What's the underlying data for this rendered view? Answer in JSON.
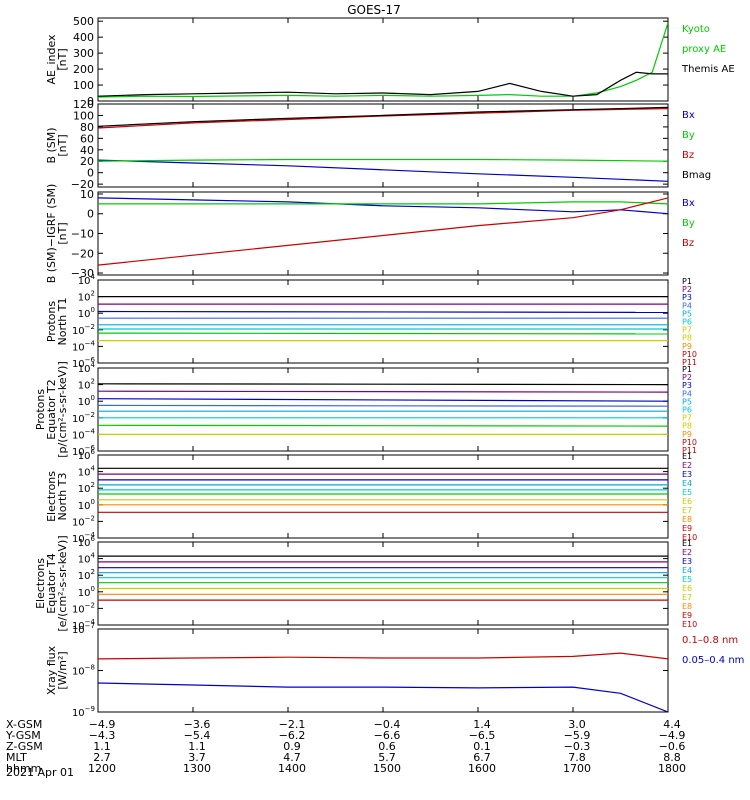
{
  "title": "GOES-17",
  "time_axis": {
    "date": "2021 Apr 01",
    "row_labels": [
      "X-GSM",
      "Y-GSM",
      "Z-GSM",
      "MLT",
      "hhmm"
    ],
    "ticks": [
      {
        "hhmm": "1200",
        "xgsm": "-4.9",
        "ygsm": "-4.3",
        "zgsm": "1.1",
        "mlt": "2.7"
      },
      {
        "hhmm": "1300",
        "xgsm": "-3.6",
        "ygsm": "-5.4",
        "zgsm": "1.1",
        "mlt": "3.7"
      },
      {
        "hhmm": "1400",
        "xgsm": "-2.1",
        "ygsm": "-6.2",
        "zgsm": "0.9",
        "mlt": "4.7"
      },
      {
        "hhmm": "1500",
        "xgsm": "-0.4",
        "ygsm": "-6.6",
        "zgsm": "0.6",
        "mlt": "5.7"
      },
      {
        "hhmm": "1600",
        "xgsm": "1.4",
        "ygsm": "-6.5",
        "zgsm": "0.1",
        "mlt": "6.7"
      },
      {
        "hhmm": "1700",
        "xgsm": "3.0",
        "ygsm": "-5.9",
        "zgsm": "-0.3",
        "mlt": "7.8"
      },
      {
        "hhmm": "1800",
        "xgsm": "4.4",
        "ygsm": "-4.9",
        "zgsm": "-0.6",
        "mlt": "8.8"
      }
    ]
  },
  "chart_data": [
    {
      "id": "ae",
      "type": "line",
      "ylabel": [
        "AE_index",
        "[nT]"
      ],
      "yscale": "linear",
      "ylim": [
        0,
        520
      ],
      "yticks": [
        0,
        100,
        200,
        300,
        400,
        500
      ],
      "yticklabels": [
        "0",
        "100",
        "200",
        "300",
        "400",
        "500"
      ],
      "x": [
        "12:00",
        "12:30",
        "13:00",
        "13:30",
        "14:00",
        "14:30",
        "15:00",
        "15:30",
        "16:00",
        "16:20",
        "16:40",
        "17:00",
        "17:15",
        "17:30",
        "17:40",
        "17:50",
        "18:00"
      ],
      "series": [
        {
          "name": "Kyoto proxy AE",
          "color": "#00cc00",
          "values": [
            25,
            30,
            28,
            32,
            35,
            30,
            35,
            30,
            35,
            40,
            30,
            30,
            50,
            90,
            130,
            180,
            490
          ]
        },
        {
          "name": "Themis AE",
          "color": "#000000",
          "values": [
            30,
            40,
            45,
            50,
            55,
            45,
            50,
            40,
            60,
            110,
            60,
            30,
            40,
            130,
            180,
            170,
            170
          ]
        }
      ],
      "legend_lines": [
        {
          "text": "Kyoto",
          "color": "#00cc00"
        },
        {
          "text": "proxy AE",
          "color": "#00cc00"
        },
        {
          "text": "Themis AE",
          "color": "#000000"
        }
      ]
    },
    {
      "id": "bsm",
      "type": "line",
      "ylabel": [
        "B (SM)",
        "[nT]"
      ],
      "yscale": "linear",
      "ylim": [
        -25,
        120
      ],
      "yticks": [
        -20,
        0,
        20,
        40,
        60,
        80,
        100,
        120
      ],
      "yticklabels": [
        "−20",
        "0",
        "20",
        "40",
        "60",
        "80",
        "100",
        "120"
      ],
      "x": [
        "12:00",
        "13:00",
        "14:00",
        "15:00",
        "16:00",
        "17:00",
        "18:00"
      ],
      "series": [
        {
          "name": "Bx",
          "color": "#0000cc",
          "values": [
            22,
            17,
            12,
            5,
            -2,
            -8,
            -15
          ]
        },
        {
          "name": "By",
          "color": "#00cc00",
          "values": [
            20,
            22,
            23,
            23,
            23,
            22,
            20
          ]
        },
        {
          "name": "Bz",
          "color": "#cc0000",
          "values": [
            78,
            87,
            93,
            99,
            104,
            109,
            112
          ]
        },
        {
          "name": "Bmag",
          "color": "#000000",
          "values": [
            81,
            89,
            95,
            100,
            106,
            110,
            114
          ]
        }
      ],
      "legend_lines": [
        {
          "text": "Bx",
          "color": "#0000cc"
        },
        {
          "text": "By",
          "color": "#00cc00"
        },
        {
          "text": "Bz",
          "color": "#cc0000"
        },
        {
          "text": "Bmag",
          "color": "#000000"
        }
      ]
    },
    {
      "id": "bdiff",
      "type": "line",
      "ylabel": [
        "B (SM)−IGRF (SM)",
        "[nT]"
      ],
      "yscale": "linear",
      "ylim": [
        -31,
        11
      ],
      "yticks": [
        -30,
        -20,
        -10,
        0,
        10
      ],
      "yticklabels": [
        "−30",
        "−20",
        "−10",
        "0",
        "10"
      ],
      "x": [
        "12:00",
        "13:00",
        "14:00",
        "15:00",
        "16:00",
        "17:00",
        "17:30",
        "18:00"
      ],
      "series": [
        {
          "name": "Bx",
          "color": "#0000cc",
          "values": [
            8,
            7,
            6,
            4,
            3,
            1,
            2,
            0
          ]
        },
        {
          "name": "By",
          "color": "#00cc00",
          "values": [
            5,
            5,
            5,
            5,
            5,
            6,
            6,
            5
          ]
        },
        {
          "name": "Bz",
          "color": "#cc0000",
          "values": [
            -26,
            -21,
            -16,
            -11,
            -6,
            -2,
            2,
            8
          ]
        }
      ],
      "legend_lines": [
        {
          "text": "Bx",
          "color": "#0000cc"
        },
        {
          "text": "By",
          "color": "#00cc00"
        },
        {
          "text": "Bz",
          "color": "#cc0000"
        }
      ]
    },
    {
      "id": "pn",
      "type": "line",
      "ylabel": [
        "Protons",
        "North T1"
      ],
      "yscale": "log",
      "ylim_exp": [
        -6,
        4
      ],
      "ytick_exps": [
        -6,
        -4,
        -2,
        0,
        2,
        4
      ],
      "x": [
        "12:00",
        "18:00"
      ],
      "series": [
        {
          "name": "P1",
          "color": "#000000",
          "log_values": [
            2.0,
            2.0
          ]
        },
        {
          "name": "P2",
          "color": "#800080",
          "log_values": [
            1.1,
            1.1
          ]
        },
        {
          "name": "P3",
          "color": "#0000cc",
          "log_values": [
            0.2,
            0.1
          ]
        },
        {
          "name": "P4",
          "color": "#3366ff",
          "log_values": [
            -0.6,
            -0.6
          ]
        },
        {
          "name": "P5",
          "color": "#00aadd",
          "log_values": [
            -1.4,
            -1.4
          ]
        },
        {
          "name": "P6",
          "color": "#00cccc",
          "log_values": [
            -1.9,
            -1.9
          ]
        },
        {
          "name": "P7",
          "color": "#00cc00",
          "log_values": [
            -2.4,
            -2.5
          ]
        },
        {
          "name": "P8",
          "color": "#cccc00",
          "log_values": [
            -3.3,
            -3.3
          ]
        }
      ],
      "legend_lines": [
        {
          "text": "P1",
          "color": "#000000"
        },
        {
          "text": "P2",
          "color": "#800080"
        },
        {
          "text": "P3",
          "color": "#0000cc"
        },
        {
          "text": "P4",
          "color": "#3366ff"
        },
        {
          "text": "P5",
          "color": "#00aadd"
        },
        {
          "text": "P6",
          "color": "#00cccc"
        },
        {
          "text": "P7",
          "color": "#cccc00"
        },
        {
          "text": "P8",
          "color": "#cccc00"
        },
        {
          "text": "P9",
          "color": "#ff8800"
        },
        {
          "text": "P10",
          "color": "#cc0000"
        },
        {
          "text": "P11",
          "color": "#cc0000"
        }
      ]
    },
    {
      "id": "pe",
      "type": "line",
      "ylabel": [
        "Protons",
        "Equator T2",
        "[p/(cm²-s-sr-keV)]"
      ],
      "yscale": "log",
      "ylim_exp": [
        -6,
        4
      ],
      "ytick_exps": [
        -6,
        -4,
        -2,
        0,
        2,
        4
      ],
      "x": [
        "12:00",
        "18:00"
      ],
      "series": [
        {
          "name": "P1",
          "color": "#000000",
          "log_values": [
            2.1,
            2.0
          ]
        },
        {
          "name": "P2",
          "color": "#800080",
          "log_values": [
            1.2,
            1.1
          ]
        },
        {
          "name": "P3",
          "color": "#0000cc",
          "log_values": [
            0.3,
            0.0
          ]
        },
        {
          "name": "P4",
          "color": "#3366ff",
          "log_values": [
            -0.5,
            -0.6
          ]
        },
        {
          "name": "P5",
          "color": "#00aadd",
          "log_values": [
            -1.2,
            -1.2
          ]
        },
        {
          "name": "P6",
          "color": "#00cccc",
          "log_values": [
            -2.0,
            -2.0
          ]
        },
        {
          "name": "P7",
          "color": "#00cc00",
          "log_values": [
            -2.9,
            -3.0
          ]
        },
        {
          "name": "P8",
          "color": "#cccc00",
          "log_values": [
            -4.0,
            -4.0
          ]
        }
      ],
      "legend_lines": [
        {
          "text": "P1",
          "color": "#000000"
        },
        {
          "text": "P2",
          "color": "#800080"
        },
        {
          "text": "P3",
          "color": "#0000cc"
        },
        {
          "text": "P4",
          "color": "#3366ff"
        },
        {
          "text": "P5",
          "color": "#00aadd"
        },
        {
          "text": "P6",
          "color": "#00cccc"
        },
        {
          "text": "P7",
          "color": "#cccc00"
        },
        {
          "text": "P8",
          "color": "#cccc00"
        },
        {
          "text": "P9",
          "color": "#ff8800"
        },
        {
          "text": "P10",
          "color": "#cc0000"
        },
        {
          "text": "P11",
          "color": "#cc0000"
        }
      ]
    },
    {
      "id": "en",
      "type": "line",
      "ylabel": [
        "Electrons",
        "North T3"
      ],
      "yscale": "log",
      "ylim_exp": [
        -4,
        6
      ],
      "ytick_exps": [
        -4,
        -2,
        0,
        2,
        4,
        6
      ],
      "x": [
        "12:00",
        "18:00"
      ],
      "series": [
        {
          "name": "E1",
          "color": "#000000",
          "log_values": [
            4.4,
            4.4
          ]
        },
        {
          "name": "E2",
          "color": "#800080",
          "log_values": [
            3.7,
            3.7
          ]
        },
        {
          "name": "E3",
          "color": "#0000cc",
          "log_values": [
            3.0,
            3.0
          ]
        },
        {
          "name": "E4",
          "color": "#00aadd",
          "log_values": [
            2.4,
            2.4
          ]
        },
        {
          "name": "E5",
          "color": "#00cccc",
          "log_values": [
            1.8,
            1.8
          ]
        },
        {
          "name": "E6",
          "color": "#00cc00",
          "log_values": [
            1.3,
            1.3
          ]
        },
        {
          "name": "E7",
          "color": "#cccc00",
          "log_values": [
            0.6,
            0.6
          ]
        },
        {
          "name": "E8",
          "color": "#ff8800",
          "log_values": [
            0.0,
            0.0
          ]
        },
        {
          "name": "E9",
          "color": "#cc0000",
          "log_values": [
            -0.9,
            -0.9
          ]
        }
      ],
      "legend_lines": [
        {
          "text": "E1",
          "color": "#000000"
        },
        {
          "text": "E2",
          "color": "#800080"
        },
        {
          "text": "E3",
          "color": "#0000cc"
        },
        {
          "text": "E4",
          "color": "#00aadd"
        },
        {
          "text": "E5",
          "color": "#00cccc"
        },
        {
          "text": "E6",
          "color": "#cccc00"
        },
        {
          "text": "E7",
          "color": "#cccc00"
        },
        {
          "text": "E8",
          "color": "#ff8800"
        },
        {
          "text": "E9",
          "color": "#cc0000"
        },
        {
          "text": "E10",
          "color": "#cc0000"
        }
      ]
    },
    {
      "id": "ee",
      "type": "line",
      "ylabel": [
        "Electrons",
        "Equator T4",
        "[e/(cm²-s-sr-keV)]"
      ],
      "yscale": "log",
      "ylim_exp": [
        -4,
        6
      ],
      "ytick_exps": [
        -4,
        -2,
        0,
        2,
        4,
        6
      ],
      "x": [
        "12:00",
        "18:00"
      ],
      "series": [
        {
          "name": "E1",
          "color": "#000000",
          "log_values": [
            4.3,
            4.3
          ]
        },
        {
          "name": "E2",
          "color": "#800080",
          "log_values": [
            3.6,
            3.6
          ]
        },
        {
          "name": "E3",
          "color": "#0000cc",
          "log_values": [
            2.9,
            2.9
          ]
        },
        {
          "name": "E4",
          "color": "#00aadd",
          "log_values": [
            2.3,
            2.3
          ]
        },
        {
          "name": "E5",
          "color": "#00cccc",
          "log_values": [
            1.7,
            1.7
          ]
        },
        {
          "name": "E6",
          "color": "#00cc00",
          "log_values": [
            1.1,
            1.1
          ]
        },
        {
          "name": "E7",
          "color": "#cccc00",
          "log_values": [
            0.4,
            0.4
          ]
        },
        {
          "name": "E8",
          "color": "#ff8800",
          "log_values": [
            -0.3,
            -0.3
          ]
        },
        {
          "name": "E9",
          "color": "#cc0000",
          "log_values": [
            -1.0,
            -1.0
          ]
        }
      ],
      "legend_lines": [
        {
          "text": "E1",
          "color": "#000000"
        },
        {
          "text": "E2",
          "color": "#800080"
        },
        {
          "text": "E3",
          "color": "#0000cc"
        },
        {
          "text": "E4",
          "color": "#00aadd"
        },
        {
          "text": "E5",
          "color": "#00cccc"
        },
        {
          "text": "E6",
          "color": "#cccc00"
        },
        {
          "text": "E7",
          "color": "#cccc00"
        },
        {
          "text": "E8",
          "color": "#ff8800"
        },
        {
          "text": "E9",
          "color": "#cc0000"
        },
        {
          "text": "E10",
          "color": "#cc0000"
        }
      ]
    },
    {
      "id": "xray",
      "type": "line",
      "ylabel": [
        "Xray flux",
        "[W/m²]"
      ],
      "yscale": "log",
      "ylim_exp": [
        -9,
        -7
      ],
      "ytick_exps": [
        -9,
        -8,
        -7
      ],
      "x": [
        "12:00",
        "13:00",
        "14:00",
        "15:00",
        "16:00",
        "17:00",
        "17:30",
        "18:00"
      ],
      "series": [
        {
          "name": "0.1–0.8 nm",
          "color": "#cc0000",
          "log_values": [
            -7.72,
            -7.7,
            -7.68,
            -7.7,
            -7.7,
            -7.66,
            -7.58,
            -7.72
          ]
        },
        {
          "name": "0.05–0.4 nm",
          "color": "#0000cc",
          "log_values": [
            -8.3,
            -8.35,
            -8.4,
            -8.4,
            -8.42,
            -8.4,
            -8.55,
            -9.0
          ]
        }
      ],
      "legend_lines": [
        {
          "text": "0.1–0.8 nm",
          "color": "#cc0000"
        },
        {
          "text": "0.05–0.4 nm",
          "color": "#0000cc"
        }
      ]
    }
  ]
}
